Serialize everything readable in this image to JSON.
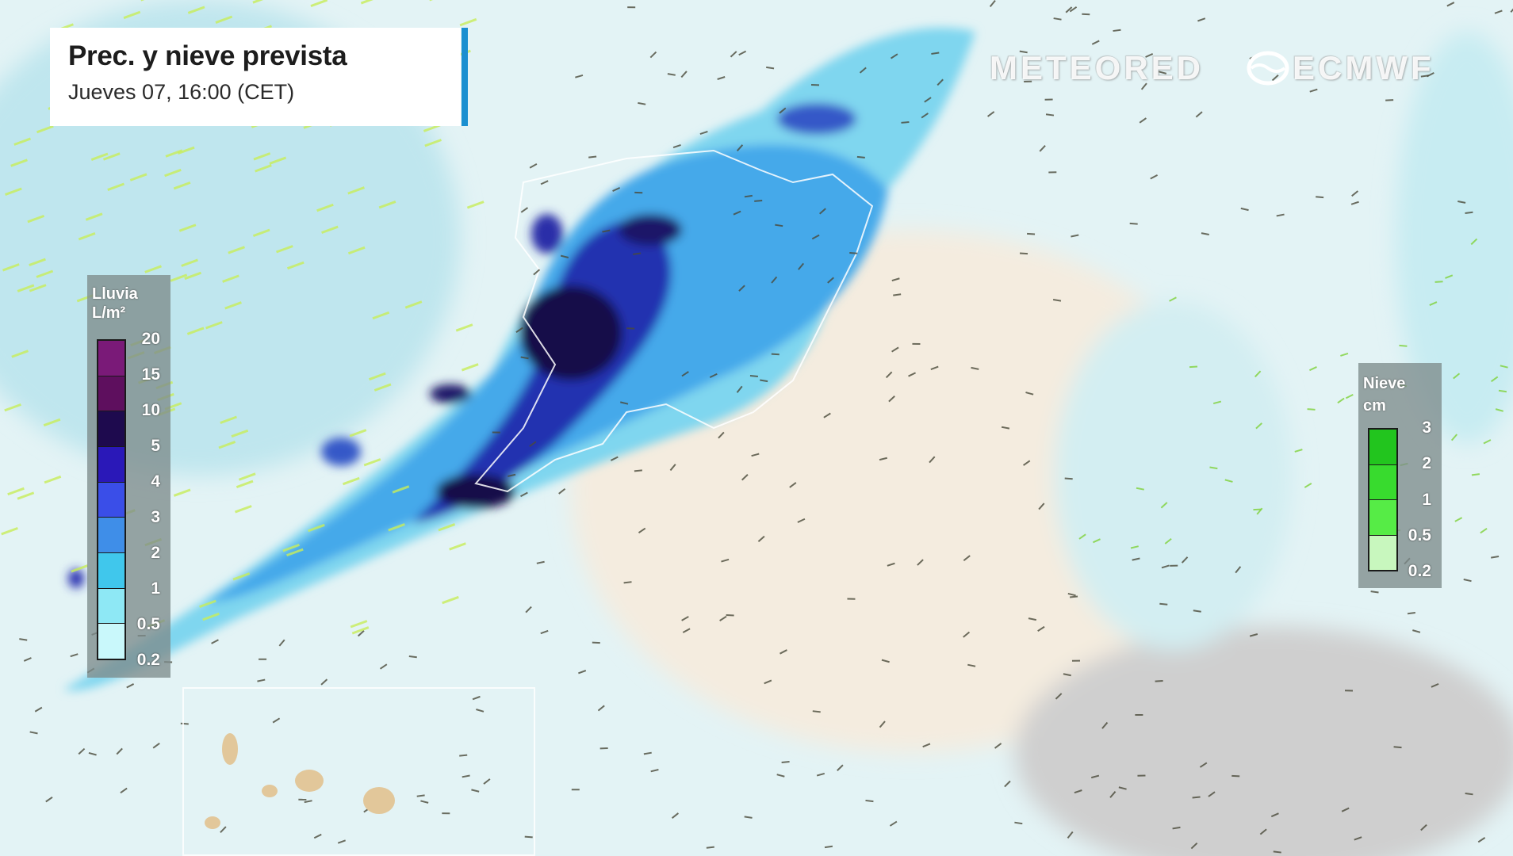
{
  "header": {
    "title": "Prec. y nieve prevista",
    "subtitle": "Jueves 07, 16:00 (CET)",
    "accent_color": "#1a8fd0"
  },
  "logos": {
    "meteored": "METEORED",
    "ecmwf": "ECMWF"
  },
  "rain_legend": {
    "title": "Lluvia",
    "unit": "L/m²",
    "ticks": [
      "20",
      "15",
      "10",
      "5",
      "4",
      "3",
      "2",
      "1",
      "0.5",
      "0.2"
    ],
    "colors": [
      "#7a1a78",
      "#5e0f5e",
      "#1e0a4e",
      "#2a18b8",
      "#3a4ee8",
      "#3f8ee8",
      "#40c7ec",
      "#8ee8f5",
      "#c9f8fb"
    ]
  },
  "snow_legend": {
    "title": "Nieve",
    "unit": "cm",
    "ticks": [
      "3",
      "2",
      "1",
      "0.5",
      "0.2"
    ],
    "colors": [
      "#22c51e",
      "#38db2e",
      "#56ec46",
      "#c8f7be"
    ]
  },
  "map": {
    "sea_color": "#c9eef4",
    "land_color": "#f3ece0",
    "inset": "canary-islands"
  }
}
